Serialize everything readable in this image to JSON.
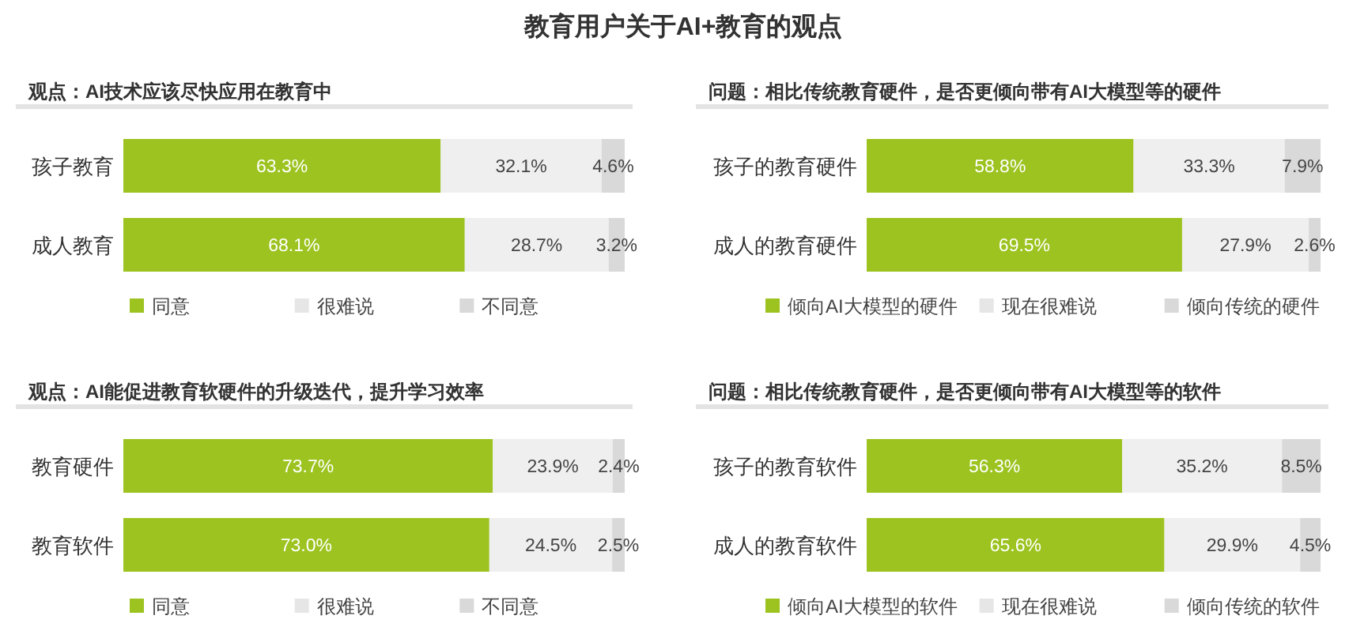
{
  "chart_data": [
    {
      "type": "bar",
      "orientation": "horizontal",
      "stacked": true,
      "data_labels": true,
      "legend": "bottom",
      "title": "教育用户关于AI+教育的观点",
      "subtitle": "观点：AI技术应该尽快应用在教育中",
      "categories": [
        "孩子教育",
        "成人教育"
      ],
      "series": [
        {
          "name": "同意",
          "color": "#9cc31f",
          "values": [
            63.3,
            68.1
          ],
          "value_labels": [
            "63.3%",
            "68.1%"
          ]
        },
        {
          "name": "很难说",
          "color": "#efefef",
          "values": [
            32.1,
            28.7
          ],
          "value_labels": [
            "32.1%",
            "28.7%"
          ]
        },
        {
          "name": "不同意",
          "color": "#d9d9d9",
          "values": [
            4.6,
            3.2
          ],
          "value_labels": [
            "4.6%",
            "3.2%"
          ]
        }
      ]
    },
    {
      "type": "bar",
      "orientation": "horizontal",
      "stacked": true,
      "data_labels": true,
      "legend": "bottom",
      "subtitle": "问题：相比传统教育硬件，是否更倾向带有AI大模型等的硬件",
      "categories": [
        "孩子的教育硬件",
        "成人的教育硬件"
      ],
      "series": [
        {
          "name": "倾向AI大模型的硬件",
          "color": "#9cc31f",
          "values": [
            58.8,
            69.5
          ],
          "value_labels": [
            "58.8%",
            "69.5%"
          ]
        },
        {
          "name": "现在很难说",
          "color": "#efefef",
          "values": [
            33.3,
            27.9
          ],
          "value_labels": [
            "33.3%",
            "27.9%"
          ]
        },
        {
          "name": "倾向传统的硬件",
          "color": "#d9d9d9",
          "values": [
            7.9,
            2.6
          ],
          "value_labels": [
            "7.9%",
            "2.6%"
          ]
        }
      ]
    },
    {
      "type": "bar",
      "orientation": "horizontal",
      "stacked": true,
      "data_labels": true,
      "legend": "bottom",
      "subtitle": "观点：AI能促进教育软硬件的升级迭代，提升学习效率",
      "categories": [
        "教育硬件",
        "教育软件"
      ],
      "series": [
        {
          "name": "同意",
          "color": "#9cc31f",
          "values": [
            73.7,
            73.0
          ],
          "value_labels": [
            "73.7%",
            "73.0%"
          ]
        },
        {
          "name": "很难说",
          "color": "#efefef",
          "values": [
            23.9,
            24.5
          ],
          "value_labels": [
            "23.9%",
            "24.5%"
          ]
        },
        {
          "name": "不同意",
          "color": "#d9d9d9",
          "values": [
            2.4,
            2.5
          ],
          "value_labels": [
            "2.4%",
            "2.5%"
          ]
        }
      ]
    },
    {
      "type": "bar",
      "orientation": "horizontal",
      "stacked": true,
      "data_labels": true,
      "legend": "bottom",
      "subtitle": "问题：相比传统教育硬件，是否更倾向带有AI大模型等的软件",
      "categories": [
        "孩子的教育软件",
        "成人的教育软件"
      ],
      "series": [
        {
          "name": "倾向AI大模型的软件",
          "color": "#9cc31f",
          "values": [
            56.3,
            65.6
          ],
          "value_labels": [
            "56.3%",
            "65.6%"
          ]
        },
        {
          "name": "现在很难说",
          "color": "#efefef",
          "values": [
            35.2,
            29.9
          ],
          "value_labels": [
            "35.2%",
            "29.9%"
          ]
        },
        {
          "name": "倾向传统的软件",
          "color": "#d9d9d9",
          "values": [
            8.5,
            4.5
          ],
          "value_labels": [
            "8.5%",
            "4.5%"
          ]
        }
      ]
    }
  ]
}
